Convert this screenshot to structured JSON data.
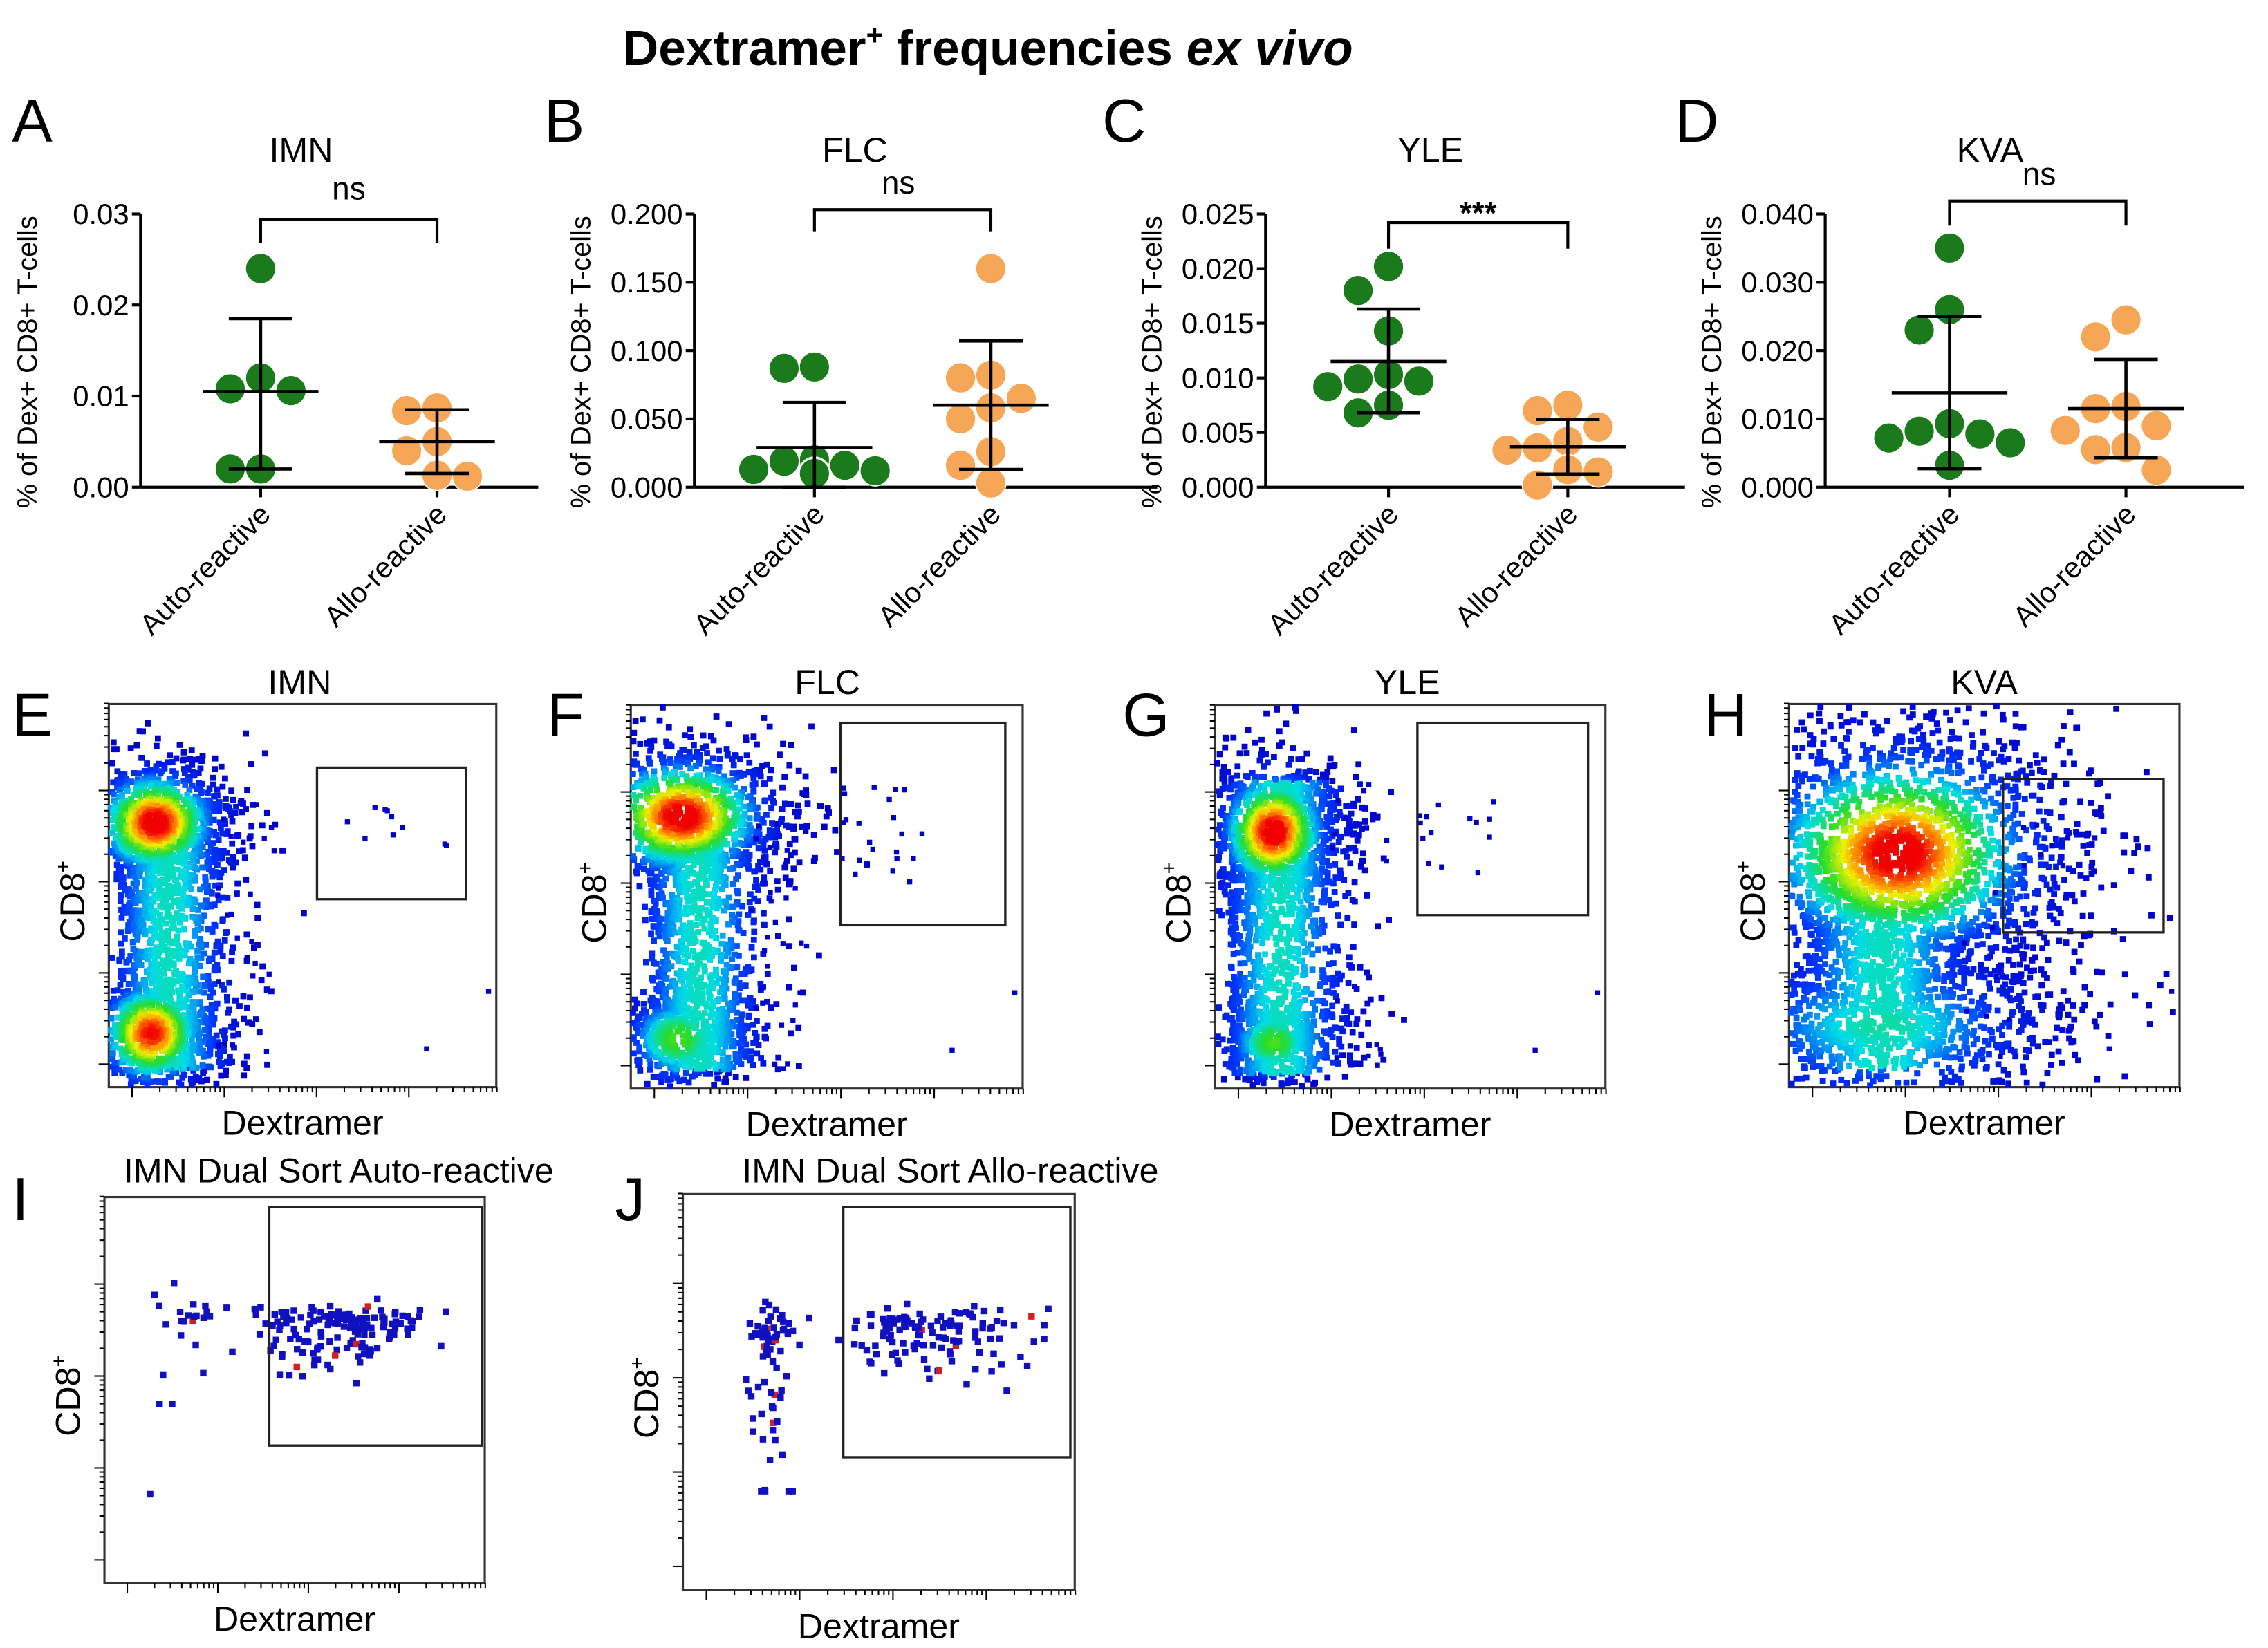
{
  "title": {
    "main": "Dextramer",
    "sup": "+",
    "rest": " frequencies ",
    "italic": "ex vivo"
  },
  "chart_data": [
    {
      "panel": "A",
      "type": "scatter",
      "title": "IMN",
      "ylabel": "% of Dex+ CD8+ T-cells",
      "ylim": [
        0,
        0.03
      ],
      "yticks": [
        "0.00",
        "0.01",
        "0.02",
        "0.03"
      ],
      "categories": [
        "Auto-reactive",
        "Allo-reactive"
      ],
      "significance": "ns",
      "series": [
        {
          "name": "Auto-reactive",
          "color": "#1b7a1b",
          "values": [
            0.024,
            0.012,
            0.0108,
            0.0106,
            0.002,
            0.002
          ],
          "mean": 0.0105,
          "sd_low": 0.002,
          "sd_high": 0.0185
        },
        {
          "name": "Allo-reactive",
          "color": "#f6a657",
          "values": [
            0.0087,
            0.0084,
            0.005,
            0.004,
            0.0012,
            0.0013
          ],
          "mean": 0.005,
          "sd_low": 0.0015,
          "sd_high": 0.0085
        }
      ]
    },
    {
      "panel": "B",
      "type": "scatter",
      "title": "FLC",
      "ylabel": "% of Dex+ CD8+ T-cells",
      "ylim": [
        0,
        0.2
      ],
      "yticks": [
        "0.000",
        "0.050",
        "0.100",
        "0.150",
        "0.200"
      ],
      "categories": [
        "Auto-reactive",
        "Allo-reactive"
      ],
      "significance": "ns",
      "series": [
        {
          "name": "Auto-reactive",
          "color": "#1b7a1b",
          "values": [
            0.088,
            0.087,
            0.02,
            0.019,
            0.016,
            0.013,
            0.012,
            0.011,
            0.01
          ],
          "mean": 0.029,
          "sd_low": 0.0,
          "sd_high": 0.062
        },
        {
          "name": "Allo-reactive",
          "color": "#f6a657",
          "values": [
            0.16,
            0.082,
            0.08,
            0.065,
            0.058,
            0.05,
            0.026,
            0.016,
            0.003
          ],
          "mean": 0.06,
          "sd_low": 0.013,
          "sd_high": 0.107
        }
      ]
    },
    {
      "panel": "C",
      "type": "scatter",
      "title": "YLE",
      "ylabel": "% of Dex+ CD8+ T-cells",
      "ylim": [
        0,
        0.025
      ],
      "yticks": [
        "0.000",
        "0.005",
        "0.010",
        "0.015",
        "0.020",
        "0.025"
      ],
      "categories": [
        "Auto-reactive",
        "Allo-reactive"
      ],
      "significance": "***",
      "series": [
        {
          "name": "Auto-reactive",
          "color": "#1b7a1b",
          "values": [
            0.0202,
            0.018,
            0.0143,
            0.0103,
            0.0099,
            0.0097,
            0.0092,
            0.0075,
            0.0068
          ],
          "mean": 0.0115,
          "sd_low": 0.0068,
          "sd_high": 0.0163
        },
        {
          "name": "Allo-reactive",
          "color": "#f6a657",
          "values": [
            0.0075,
            0.007,
            0.0055,
            0.0042,
            0.0036,
            0.0034,
            0.0016,
            0.0014,
            0.0002
          ],
          "mean": 0.0037,
          "sd_low": 0.0012,
          "sd_high": 0.0062
        }
      ]
    },
    {
      "panel": "D",
      "type": "scatter",
      "title": "KVA",
      "ylabel": "% of Dex+ CD8+ T-cells",
      "ylim": [
        0,
        0.04
      ],
      "yticks": [
        "0.000",
        "0.010",
        "0.020",
        "0.030",
        "0.040"
      ],
      "categories": [
        "Auto-reactive",
        "Allo-reactive"
      ],
      "significance": "ns",
      "series": [
        {
          "name": "Auto-reactive",
          "color": "#1b7a1b",
          "values": [
            0.035,
            0.026,
            0.023,
            0.0093,
            0.0082,
            0.0078,
            0.0065,
            0.0072,
            0.0032
          ],
          "mean": 0.0138,
          "sd_low": 0.0027,
          "sd_high": 0.025
        },
        {
          "name": "Allo-reactive",
          "color": "#f6a657",
          "values": [
            0.0245,
            0.022,
            0.0118,
            0.0115,
            0.009,
            0.0083,
            0.0058,
            0.0055,
            0.0025
          ],
          "mean": 0.0115,
          "sd_low": 0.0043,
          "sd_high": 0.0187
        }
      ]
    },
    {
      "panel": "E",
      "type": "scatter",
      "title": "IMN",
      "xlabel": "Dextramer",
      "ylabel": "CD8",
      "ylabel_sup": "+"
    },
    {
      "panel": "F",
      "type": "scatter",
      "title": "FLC",
      "xlabel": "Dextramer",
      "ylabel": "CD8",
      "ylabel_sup": "+"
    },
    {
      "panel": "G",
      "type": "scatter",
      "title": "YLE",
      "xlabel": "Dextramer",
      "ylabel": "CD8",
      "ylabel_sup": "+"
    },
    {
      "panel": "H",
      "type": "scatter",
      "title": "KVA",
      "xlabel": "Dextramer",
      "ylabel": "CD8",
      "ylabel_sup": "+"
    },
    {
      "panel": "I",
      "type": "scatter",
      "title": "IMN Dual Sort Auto-reactive",
      "xlabel": "Dextramer",
      "ylabel": "CD8",
      "ylabel_sup": "+"
    },
    {
      "panel": "J",
      "type": "scatter",
      "title": "IMN Dual Sort Allo-reactive",
      "xlabel": "Dextramer",
      "ylabel": "CD8",
      "ylabel_sup": "+"
    }
  ]
}
